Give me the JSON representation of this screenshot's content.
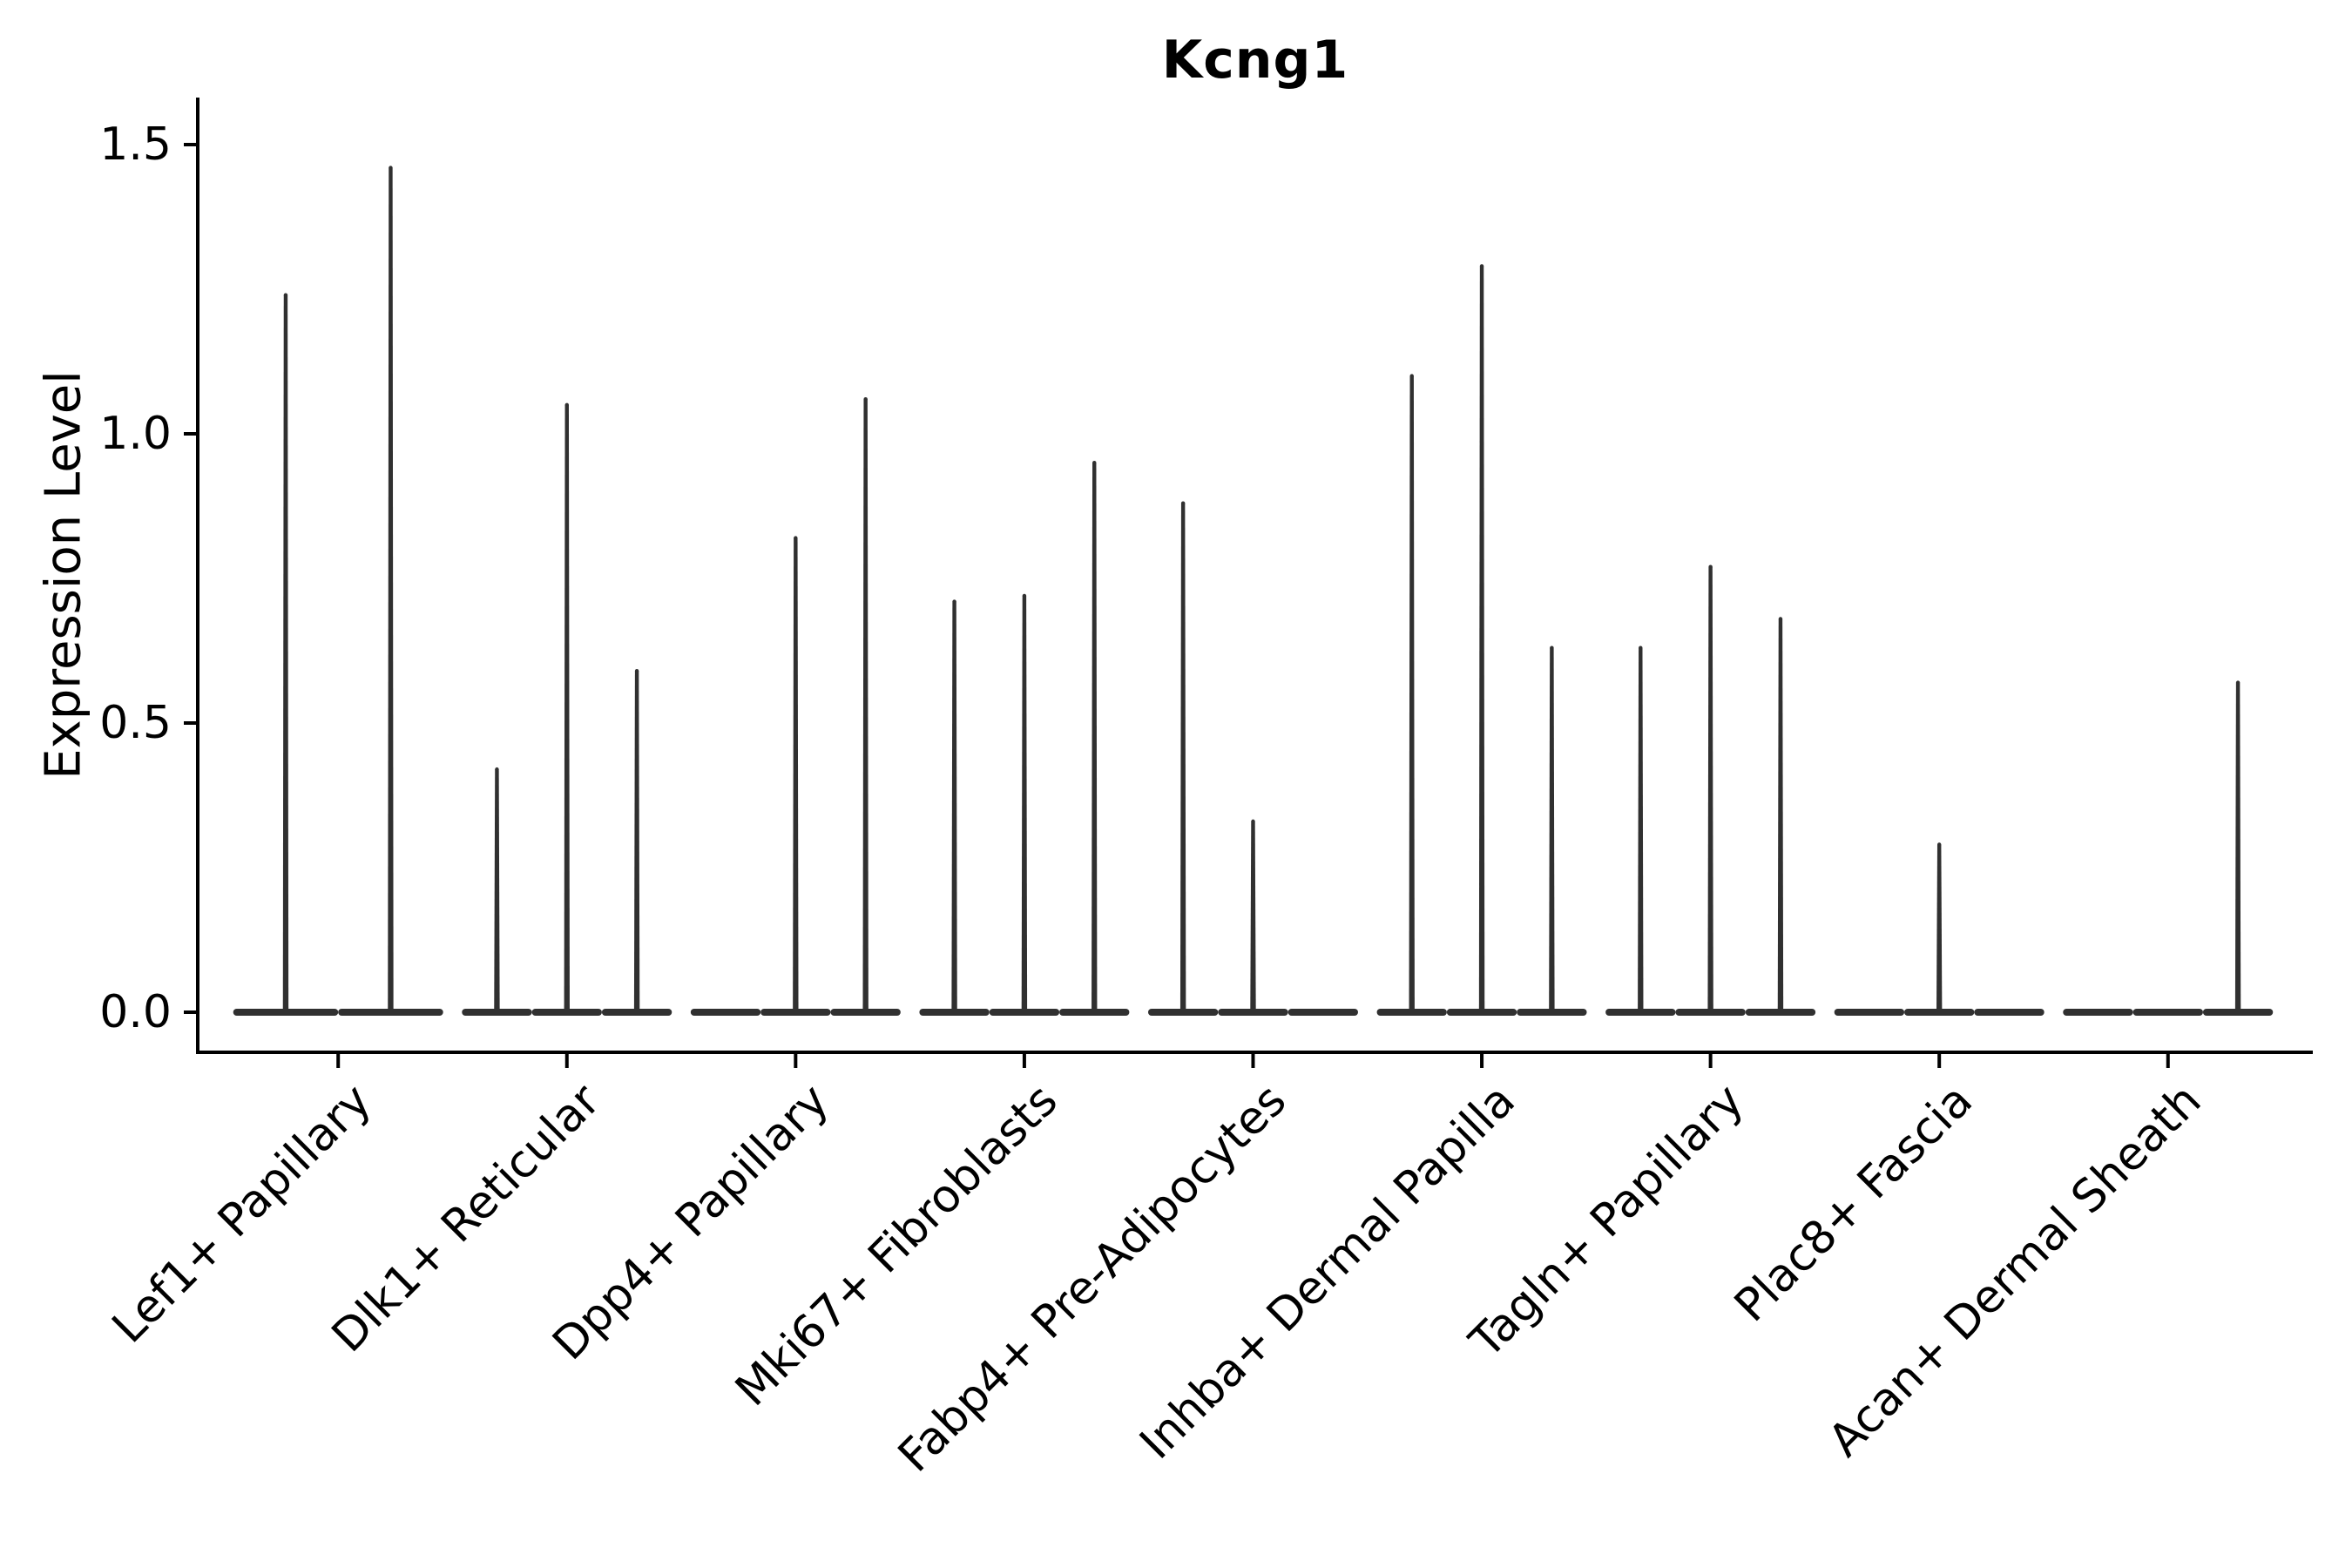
{
  "chart_data": {
    "type": "violin",
    "title": "Kcng1",
    "ylabel": "Expression Level",
    "xlabel": "",
    "legend_position": "none",
    "grid": false,
    "ylim": [
      -0.07,
      1.58
    ],
    "yticks": [
      {
        "value": 0.0,
        "label": "0.0"
      },
      {
        "value": 0.5,
        "label": "0.5"
      },
      {
        "value": 1.0,
        "label": "1.0"
      },
      {
        "value": 1.5,
        "label": "1.5"
      }
    ],
    "x_label_rotation_deg": 45,
    "categories": [
      "Lef1+ Papillary",
      "Dlk1+ Reticular",
      "Dpp4+ Papillary",
      "Mki67+ Fibroblasts",
      "Fabp4+ Pre-Adipocytes",
      "Inhba+ Dermal Papilla",
      "Tagln+ Papillary",
      "Plac8+ Fascia",
      "Acan+ Dermal Sheath"
    ],
    "groups": [
      {
        "category": "Lef1+ Papillary",
        "violin_max_expression": [
          1.24,
          1.46
        ]
      },
      {
        "category": "Dlk1+ Reticular",
        "violin_max_expression": [
          0.42,
          1.05,
          0.59
        ]
      },
      {
        "category": "Dpp4+ Papillary",
        "violin_max_expression": [
          0,
          0.82,
          1.06
        ]
      },
      {
        "category": "Mki67+ Fibroblasts",
        "violin_max_expression": [
          0.71,
          0.72,
          0.95
        ]
      },
      {
        "category": "Fabp4+ Pre-Adipocytes",
        "violin_max_expression": [
          0.88,
          0.33,
          0
        ]
      },
      {
        "category": "Inhba+ Dermal Papilla",
        "violin_max_expression": [
          1.1,
          1.29,
          0.63
        ]
      },
      {
        "category": "Tagln+ Papillary",
        "violin_max_expression": [
          0.63,
          0.77,
          0.68
        ]
      },
      {
        "category": "Plac8+ Fascia",
        "violin_max_expression": [
          0,
          0.29,
          0
        ]
      },
      {
        "category": "Acan+ Dermal Sheath",
        "violin_max_expression": [
          0,
          0,
          0.57
        ]
      }
    ],
    "colors": {
      "violin": "#303030",
      "axis": "#000000",
      "text": "#000000",
      "background": "#ffffff"
    }
  }
}
